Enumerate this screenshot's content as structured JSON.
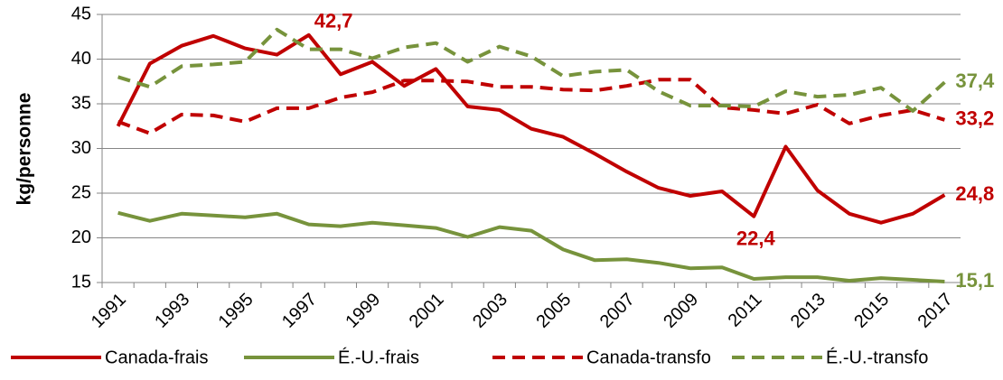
{
  "chart_data": {
    "type": "line",
    "y_label": "kg/personne",
    "categories": [
      "1991",
      null,
      "1993",
      null,
      "1995",
      null,
      "1997",
      null,
      "1999",
      null,
      "2001",
      null,
      "2003",
      null,
      "2005",
      null,
      "2007",
      null,
      "2009",
      null,
      "2011",
      null,
      "2013",
      null,
      "2015",
      null,
      "2017"
    ],
    "ylim": [
      15,
      45
    ],
    "yticks": [
      15,
      20,
      25,
      30,
      35,
      40,
      45
    ],
    "grid": true,
    "legend": "bottom",
    "series": [
      {
        "name": "Canada-frais",
        "color": "#c00000",
        "dashed": false,
        "values": [
          32.5,
          39.5,
          41.5,
          42.6,
          41.2,
          40.5,
          42.7,
          38.3,
          39.7,
          37.0,
          38.9,
          34.7,
          34.3,
          32.2,
          31.3,
          29.4,
          27.4,
          25.6,
          24.7,
          25.2,
          22.4,
          30.2,
          25.3,
          22.7,
          21.7,
          22.7,
          24.8
        ],
        "value_labels": [
          null,
          null,
          null,
          null,
          null,
          null,
          "42,7",
          null,
          null,
          null,
          null,
          null,
          null,
          null,
          null,
          null,
          null,
          null,
          null,
          null,
          "22,4",
          null,
          null,
          null,
          null,
          null,
          "24,8"
        ]
      },
      {
        "name": "É.-U.-frais",
        "color": "#77933c",
        "dashed": false,
        "values": [
          22.8,
          21.9,
          22.7,
          22.5,
          22.3,
          22.7,
          21.5,
          21.3,
          21.7,
          21.4,
          21.1,
          20.1,
          21.2,
          20.8,
          18.7,
          17.5,
          17.6,
          17.2,
          16.6,
          16.7,
          15.4,
          15.6,
          15.6,
          15.2,
          15.5,
          15.3,
          15.1
        ],
        "value_labels": [
          null,
          null,
          null,
          null,
          null,
          null,
          null,
          null,
          null,
          null,
          null,
          null,
          null,
          null,
          null,
          null,
          null,
          null,
          null,
          null,
          null,
          null,
          null,
          null,
          null,
          null,
          "15,1"
        ]
      },
      {
        "name": "Canada-transfo",
        "color": "#c00000",
        "dashed": true,
        "values": [
          33.0,
          31.7,
          33.8,
          33.7,
          33.0,
          34.5,
          34.5,
          35.7,
          36.3,
          37.6,
          37.6,
          37.5,
          36.9,
          36.9,
          36.6,
          36.5,
          37.0,
          37.7,
          37.7,
          34.6,
          34.3,
          33.9,
          34.9,
          32.8,
          33.7,
          34.3,
          33.2
        ],
        "value_labels": [
          null,
          null,
          null,
          null,
          null,
          null,
          null,
          null,
          null,
          null,
          null,
          null,
          null,
          null,
          null,
          null,
          null,
          null,
          null,
          null,
          null,
          null,
          null,
          null,
          null,
          null,
          "33,2"
        ]
      },
      {
        "name": "É.-U.-transfo",
        "color": "#77933c",
        "dashed": true,
        "values": [
          38.0,
          36.9,
          39.2,
          39.4,
          39.7,
          43.3,
          41.1,
          41.1,
          40.1,
          41.3,
          41.8,
          39.7,
          41.4,
          40.3,
          38.1,
          38.6,
          38.8,
          36.4,
          34.8,
          34.8,
          34.7,
          36.4,
          35.8,
          36.0,
          36.8,
          34.2,
          37.4
        ],
        "value_labels": [
          null,
          null,
          null,
          null,
          null,
          null,
          null,
          null,
          null,
          null,
          null,
          null,
          null,
          null,
          null,
          null,
          null,
          null,
          null,
          null,
          null,
          null,
          null,
          null,
          null,
          null,
          "37,4"
        ]
      }
    ]
  }
}
